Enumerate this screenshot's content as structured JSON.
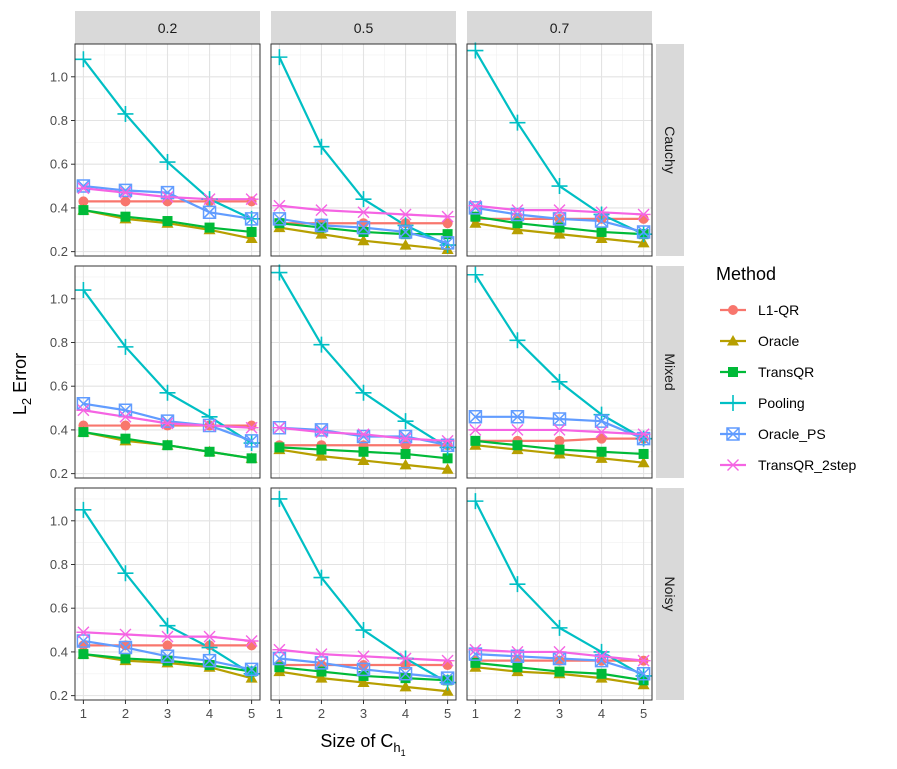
{
  "chart_data": {
    "type": "line",
    "layout": "facet-grid",
    "xlabel_main": "Size of C",
    "xlabel_sub": "h",
    "xlabel_subsub": "1",
    "ylabel_main": "L",
    "ylabel_sub": "2",
    "ylabel_rest": " Error",
    "columns": [
      "0.2",
      "0.5",
      "0.7"
    ],
    "rows": [
      "Cauchy",
      "Mixed",
      "Noisy"
    ],
    "x": [
      1,
      2,
      3,
      4,
      5
    ],
    "x_ticks": [
      "1",
      "2",
      "3",
      "4",
      "5"
    ],
    "ylim": [
      0.18,
      1.15
    ],
    "y_ticks": [
      0.2,
      0.4,
      0.6,
      0.8,
      1.0
    ],
    "y_tick_labels": [
      "0.2",
      "0.4",
      "0.6",
      "0.8",
      "1.0"
    ],
    "grid": true,
    "legend": {
      "title": "Method",
      "position": "right",
      "entries": [
        {
          "name": "L1-QR",
          "color": "#F8766D",
          "marker": "circle"
        },
        {
          "name": "Oracle",
          "color": "#B79F00",
          "marker": "triangle"
        },
        {
          "name": "TransQR",
          "color": "#00BA38",
          "marker": "square"
        },
        {
          "name": "Pooling",
          "color": "#00BFC4",
          "marker": "plus"
        },
        {
          "name": "Oracle_PS",
          "color": "#619CFF",
          "marker": "boxx"
        },
        {
          "name": "TransQR_2step",
          "color": "#F564E3",
          "marker": "asterisk"
        }
      ]
    },
    "panels": [
      {
        "row": "Cauchy",
        "col": "0.2",
        "series": {
          "L1-QR": [
            0.43,
            0.43,
            0.43,
            0.43,
            0.43
          ],
          "Oracle": [
            0.39,
            0.35,
            0.33,
            0.3,
            0.26
          ],
          "TransQR": [
            0.39,
            0.36,
            0.34,
            0.31,
            0.29
          ],
          "Pooling": [
            1.08,
            0.83,
            0.61,
            0.44,
            0.35
          ],
          "Oracle_PS": [
            0.5,
            0.48,
            0.47,
            0.38,
            0.35
          ],
          "TransQR_2step": [
            0.49,
            0.47,
            0.45,
            0.44,
            0.44
          ]
        }
      },
      {
        "row": "Cauchy",
        "col": "0.5",
        "series": {
          "L1-QR": [
            0.33,
            0.33,
            0.33,
            0.33,
            0.33
          ],
          "Oracle": [
            0.31,
            0.28,
            0.25,
            0.23,
            0.21
          ],
          "TransQR": [
            0.33,
            0.31,
            0.29,
            0.28,
            0.28
          ],
          "Pooling": [
            1.09,
            0.68,
            0.44,
            0.32,
            0.23
          ],
          "Oracle_PS": [
            0.35,
            0.32,
            0.31,
            0.29,
            0.24
          ],
          "TransQR_2step": [
            0.41,
            0.39,
            0.38,
            0.37,
            0.36
          ]
        }
      },
      {
        "row": "Cauchy",
        "col": "0.7",
        "series": {
          "L1-QR": [
            0.35,
            0.35,
            0.35,
            0.35,
            0.35
          ],
          "Oracle": [
            0.33,
            0.3,
            0.28,
            0.26,
            0.24
          ],
          "TransQR": [
            0.36,
            0.33,
            0.31,
            0.29,
            0.28
          ],
          "Pooling": [
            1.12,
            0.79,
            0.5,
            0.37,
            0.28
          ],
          "Oracle_PS": [
            0.4,
            0.37,
            0.35,
            0.34,
            0.29
          ],
          "TransQR_2step": [
            0.41,
            0.39,
            0.39,
            0.38,
            0.37
          ]
        }
      },
      {
        "row": "Mixed",
        "col": "0.2",
        "series": {
          "L1-QR": [
            0.42,
            0.42,
            0.42,
            0.42,
            0.42
          ],
          "Oracle": [
            0.39,
            0.35,
            0.33,
            0.3,
            0.27
          ],
          "TransQR": [
            0.39,
            0.36,
            0.33,
            0.3,
            0.27
          ],
          "Pooling": [
            1.04,
            0.78,
            0.57,
            0.46,
            0.34
          ],
          "Oracle_PS": [
            0.52,
            0.49,
            0.44,
            0.42,
            0.35
          ],
          "TransQR_2step": [
            0.49,
            0.46,
            0.43,
            0.42,
            0.41
          ]
        }
      },
      {
        "row": "Mixed",
        "col": "0.5",
        "series": {
          "L1-QR": [
            0.33,
            0.33,
            0.33,
            0.33,
            0.33
          ],
          "Oracle": [
            0.31,
            0.28,
            0.26,
            0.24,
            0.22
          ],
          "TransQR": [
            0.32,
            0.31,
            0.3,
            0.29,
            0.27
          ],
          "Pooling": [
            1.12,
            0.79,
            0.57,
            0.44,
            0.32
          ],
          "Oracle_PS": [
            0.41,
            0.4,
            0.37,
            0.37,
            0.33
          ],
          "TransQR_2step": [
            0.41,
            0.39,
            0.38,
            0.36,
            0.35
          ]
        }
      },
      {
        "row": "Mixed",
        "col": "0.7",
        "series": {
          "L1-QR": [
            0.35,
            0.35,
            0.35,
            0.36,
            0.36
          ],
          "Oracle": [
            0.33,
            0.31,
            0.29,
            0.27,
            0.25
          ],
          "TransQR": [
            0.35,
            0.33,
            0.31,
            0.3,
            0.29
          ],
          "Pooling": [
            1.11,
            0.81,
            0.62,
            0.47,
            0.36
          ],
          "Oracle_PS": [
            0.46,
            0.46,
            0.45,
            0.44,
            0.36
          ],
          "TransQR_2step": [
            0.4,
            0.4,
            0.4,
            0.39,
            0.38
          ]
        }
      },
      {
        "row": "Noisy",
        "col": "0.2",
        "series": {
          "L1-QR": [
            0.43,
            0.43,
            0.43,
            0.43,
            0.43
          ],
          "Oracle": [
            0.39,
            0.36,
            0.35,
            0.33,
            0.28
          ],
          "TransQR": [
            0.39,
            0.37,
            0.36,
            0.34,
            0.31
          ],
          "Pooling": [
            1.05,
            0.76,
            0.52,
            0.42,
            0.3
          ],
          "Oracle_PS": [
            0.45,
            0.42,
            0.38,
            0.36,
            0.32
          ],
          "TransQR_2step": [
            0.49,
            0.48,
            0.47,
            0.47,
            0.45
          ]
        }
      },
      {
        "row": "Noisy",
        "col": "0.5",
        "series": {
          "L1-QR": [
            0.34,
            0.34,
            0.34,
            0.34,
            0.34
          ],
          "Oracle": [
            0.31,
            0.28,
            0.26,
            0.24,
            0.22
          ],
          "TransQR": [
            0.33,
            0.31,
            0.29,
            0.28,
            0.27
          ],
          "Pooling": [
            1.1,
            0.74,
            0.5,
            0.37,
            0.26
          ],
          "Oracle_PS": [
            0.37,
            0.35,
            0.32,
            0.3,
            0.28
          ],
          "TransQR_2step": [
            0.41,
            0.39,
            0.38,
            0.37,
            0.36
          ]
        }
      },
      {
        "row": "Noisy",
        "col": "0.7",
        "series": {
          "L1-QR": [
            0.36,
            0.36,
            0.36,
            0.36,
            0.36
          ],
          "Oracle": [
            0.33,
            0.31,
            0.3,
            0.28,
            0.25
          ],
          "TransQR": [
            0.35,
            0.33,
            0.31,
            0.3,
            0.27
          ],
          "Pooling": [
            1.09,
            0.71,
            0.51,
            0.4,
            0.29
          ],
          "Oracle_PS": [
            0.39,
            0.38,
            0.37,
            0.36,
            0.3
          ],
          "TransQR_2step": [
            0.41,
            0.4,
            0.4,
            0.38,
            0.36
          ]
        }
      }
    ]
  }
}
